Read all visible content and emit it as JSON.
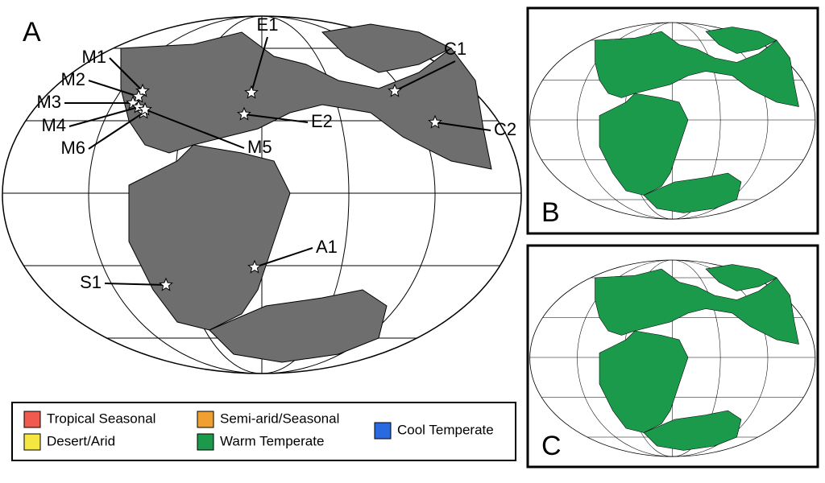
{
  "panels": [
    {
      "label": "A"
    },
    {
      "label": "B"
    },
    {
      "label": "C"
    }
  ],
  "sites": [
    {
      "label": "M1"
    },
    {
      "label": "M2"
    },
    {
      "label": "M3"
    },
    {
      "label": "M4"
    },
    {
      "label": "M6"
    },
    {
      "label": "M5"
    },
    {
      "label": "E1"
    },
    {
      "label": "E2"
    },
    {
      "label": "C1"
    },
    {
      "label": "C2"
    },
    {
      "label": "A1"
    },
    {
      "label": "S1"
    }
  ],
  "legend": [
    {
      "label": "Tropical Seasonal",
      "color": "#f05a4f"
    },
    {
      "label": "Semi-arid/Seasonal",
      "color": "#f0a030"
    },
    {
      "label": "Desert/Arid",
      "color": "#f5e642"
    },
    {
      "label": "Warm Temperate",
      "color": "#1a9a4a"
    },
    {
      "label": "Cool Temperate",
      "color": "#2a6ae0"
    }
  ]
}
